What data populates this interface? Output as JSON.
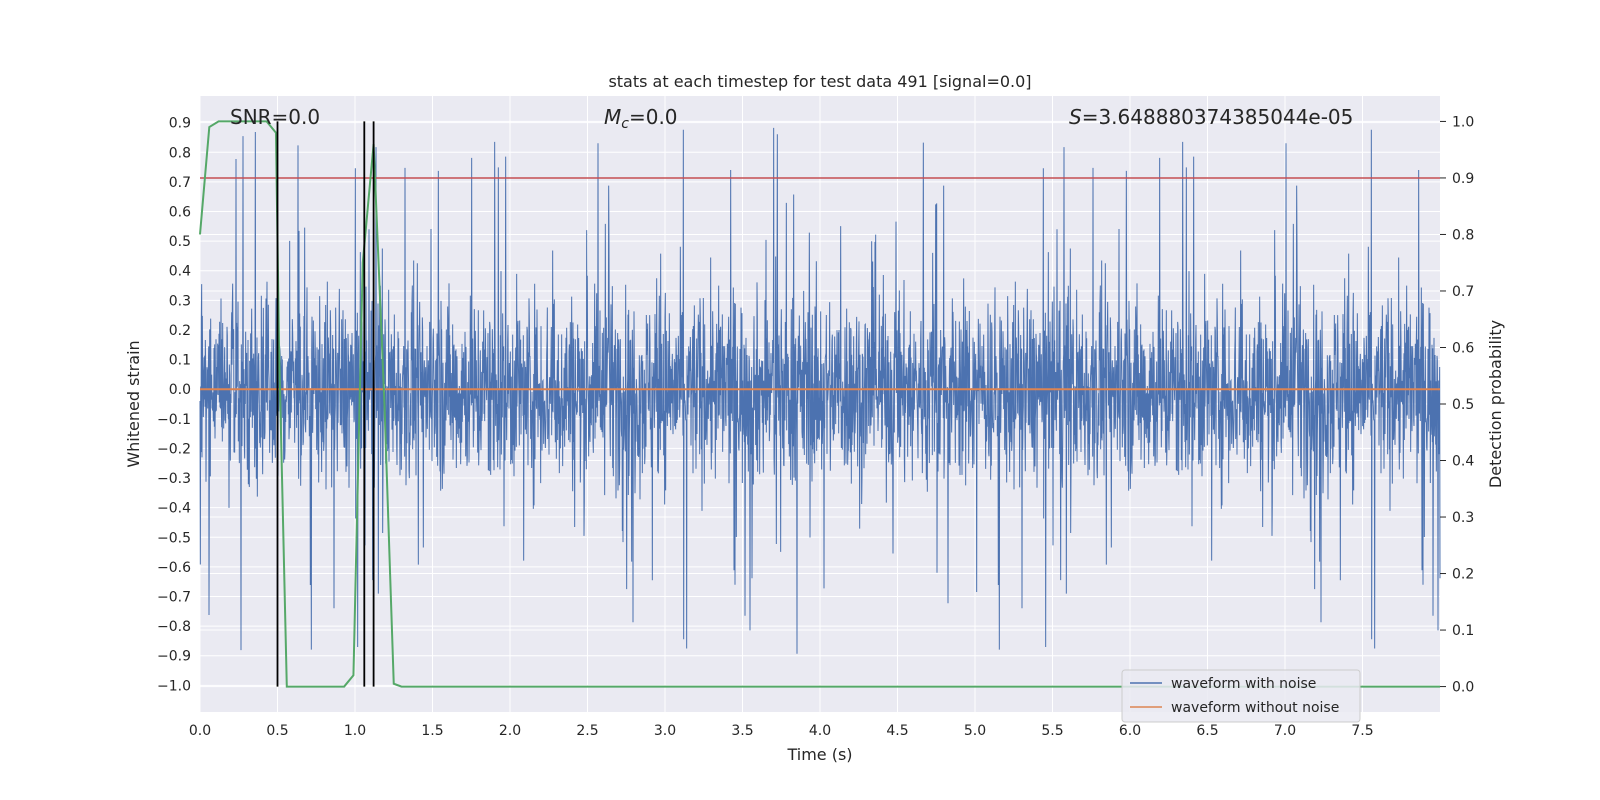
{
  "chart_data": {
    "type": "line",
    "title": "stats at each timestep for test data 491 [signal=0.0]",
    "xlabel": "Time (s)",
    "ylabel": "Whitened strain",
    "y2label": "Detection probability",
    "xlim": [
      0.0,
      8.0
    ],
    "ylim": [
      -1.09,
      0.99
    ],
    "y2lim": [
      -0.045,
      1.045
    ],
    "xticks": [
      "0.0",
      "0.5",
      "1.0",
      "1.5",
      "2.0",
      "2.5",
      "3.0",
      "3.5",
      "4.0",
      "4.5",
      "5.0",
      "5.5",
      "6.0",
      "6.5",
      "7.0",
      "7.5"
    ],
    "yticks": [
      "0.9",
      "0.8",
      "0.7",
      "0.6",
      "0.5",
      "0.4",
      "0.3",
      "0.2",
      "0.1",
      "0.0",
      "−0.1",
      "−0.2",
      "−0.3",
      "−0.4",
      "−0.5",
      "−0.6",
      "−0.7",
      "−0.8",
      "−0.9",
      "−1.0"
    ],
    "y2ticks": [
      "0.0",
      "0.1",
      "0.2",
      "0.3",
      "0.4",
      "0.5",
      "0.6",
      "0.7",
      "0.8",
      "0.9",
      "1.0"
    ],
    "grid": true,
    "legend_position": "lower-right",
    "annotations": {
      "snr": "SNR=0.0",
      "mc_symbol": "M",
      "mc_sub": "c",
      "mc_value": "=0.0",
      "s_symbol": "S",
      "s_value": "=3.648880374385044e-05"
    },
    "series": [
      {
        "name": "waveform with noise",
        "color": "#4c72b0",
        "kind": "noise",
        "envelope": 0.45,
        "peak_range": [
          -0.99,
          0.89
        ]
      },
      {
        "name": "waveform without noise",
        "color": "#dd8452",
        "kind": "constant",
        "value": 0.0
      }
    ],
    "threshold": {
      "value": 0.9,
      "axis": "y2",
      "color": "#c44e52"
    },
    "detection_probability": {
      "color": "#55a868",
      "x": [
        0.0,
        0.06,
        0.12,
        0.25,
        0.43,
        0.49,
        0.51,
        0.56,
        0.6,
        0.93,
        0.99,
        1.05,
        1.12,
        1.19,
        1.25,
        1.3,
        1.4,
        8.0
      ],
      "y": [
        0.8,
        0.99,
        1.0,
        1.0,
        1.0,
        0.98,
        0.6,
        0.0,
        0.0,
        0.0,
        0.02,
        0.75,
        0.96,
        0.5,
        0.005,
        0.0,
        0.0,
        0.0
      ]
    },
    "event_lines": {
      "color": "#000000",
      "x": [
        0.5,
        1.06,
        1.12
      ]
    }
  }
}
